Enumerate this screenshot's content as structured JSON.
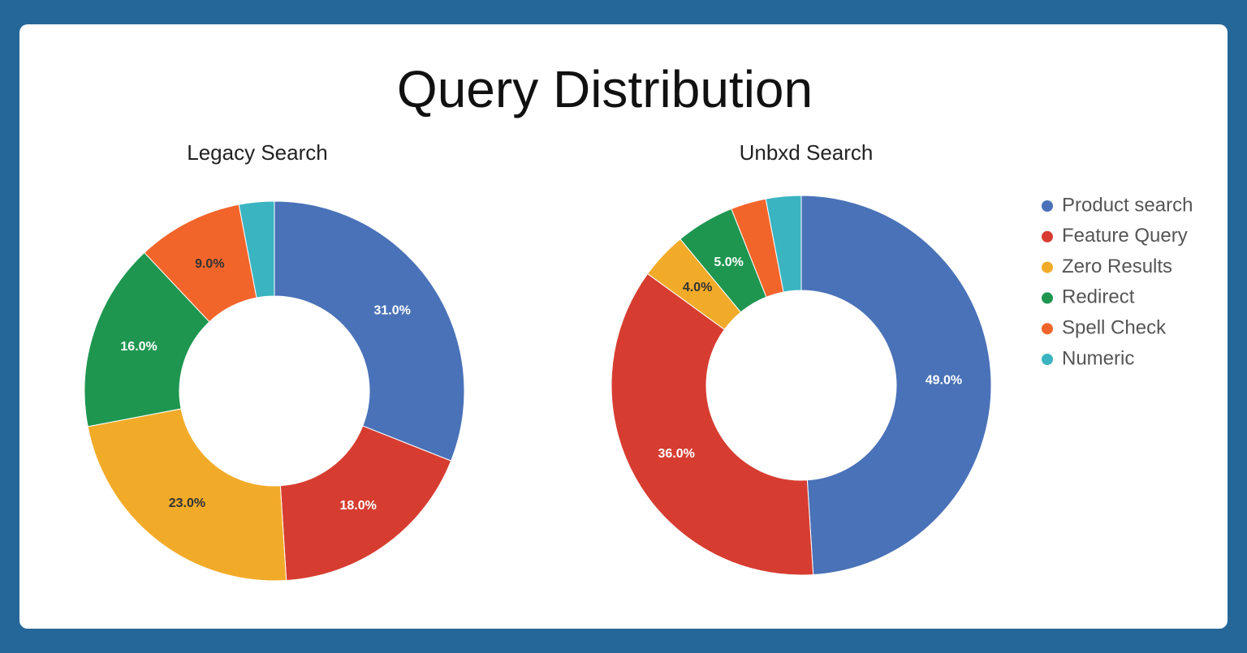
{
  "title": "Query Distribution",
  "legend": {
    "labels": [
      "Product search",
      "Feature Query",
      "Zero Results",
      "Redirect",
      "Spell Check",
      "Numeric"
    ],
    "colors": [
      "#4a72b8",
      "#d63d30",
      "#f2ab29",
      "#1e9650",
      "#f2652a",
      "#3bb4c1"
    ],
    "position": "right"
  },
  "chart_data": [
    {
      "type": "donut",
      "title": "Legacy Search",
      "values": [
        31,
        18,
        23,
        16,
        9,
        3
      ],
      "value_labels": [
        "31.0%",
        "18.0%",
        "23.0%",
        "16.0%",
        "9.0%",
        null
      ]
    },
    {
      "type": "donut",
      "title": "Unbxd Search",
      "values": [
        49,
        36,
        4,
        5,
        3,
        3
      ],
      "value_labels": [
        "49.0%",
        "36.0%",
        "4.0%",
        "5.0%",
        null,
        null
      ]
    }
  ]
}
